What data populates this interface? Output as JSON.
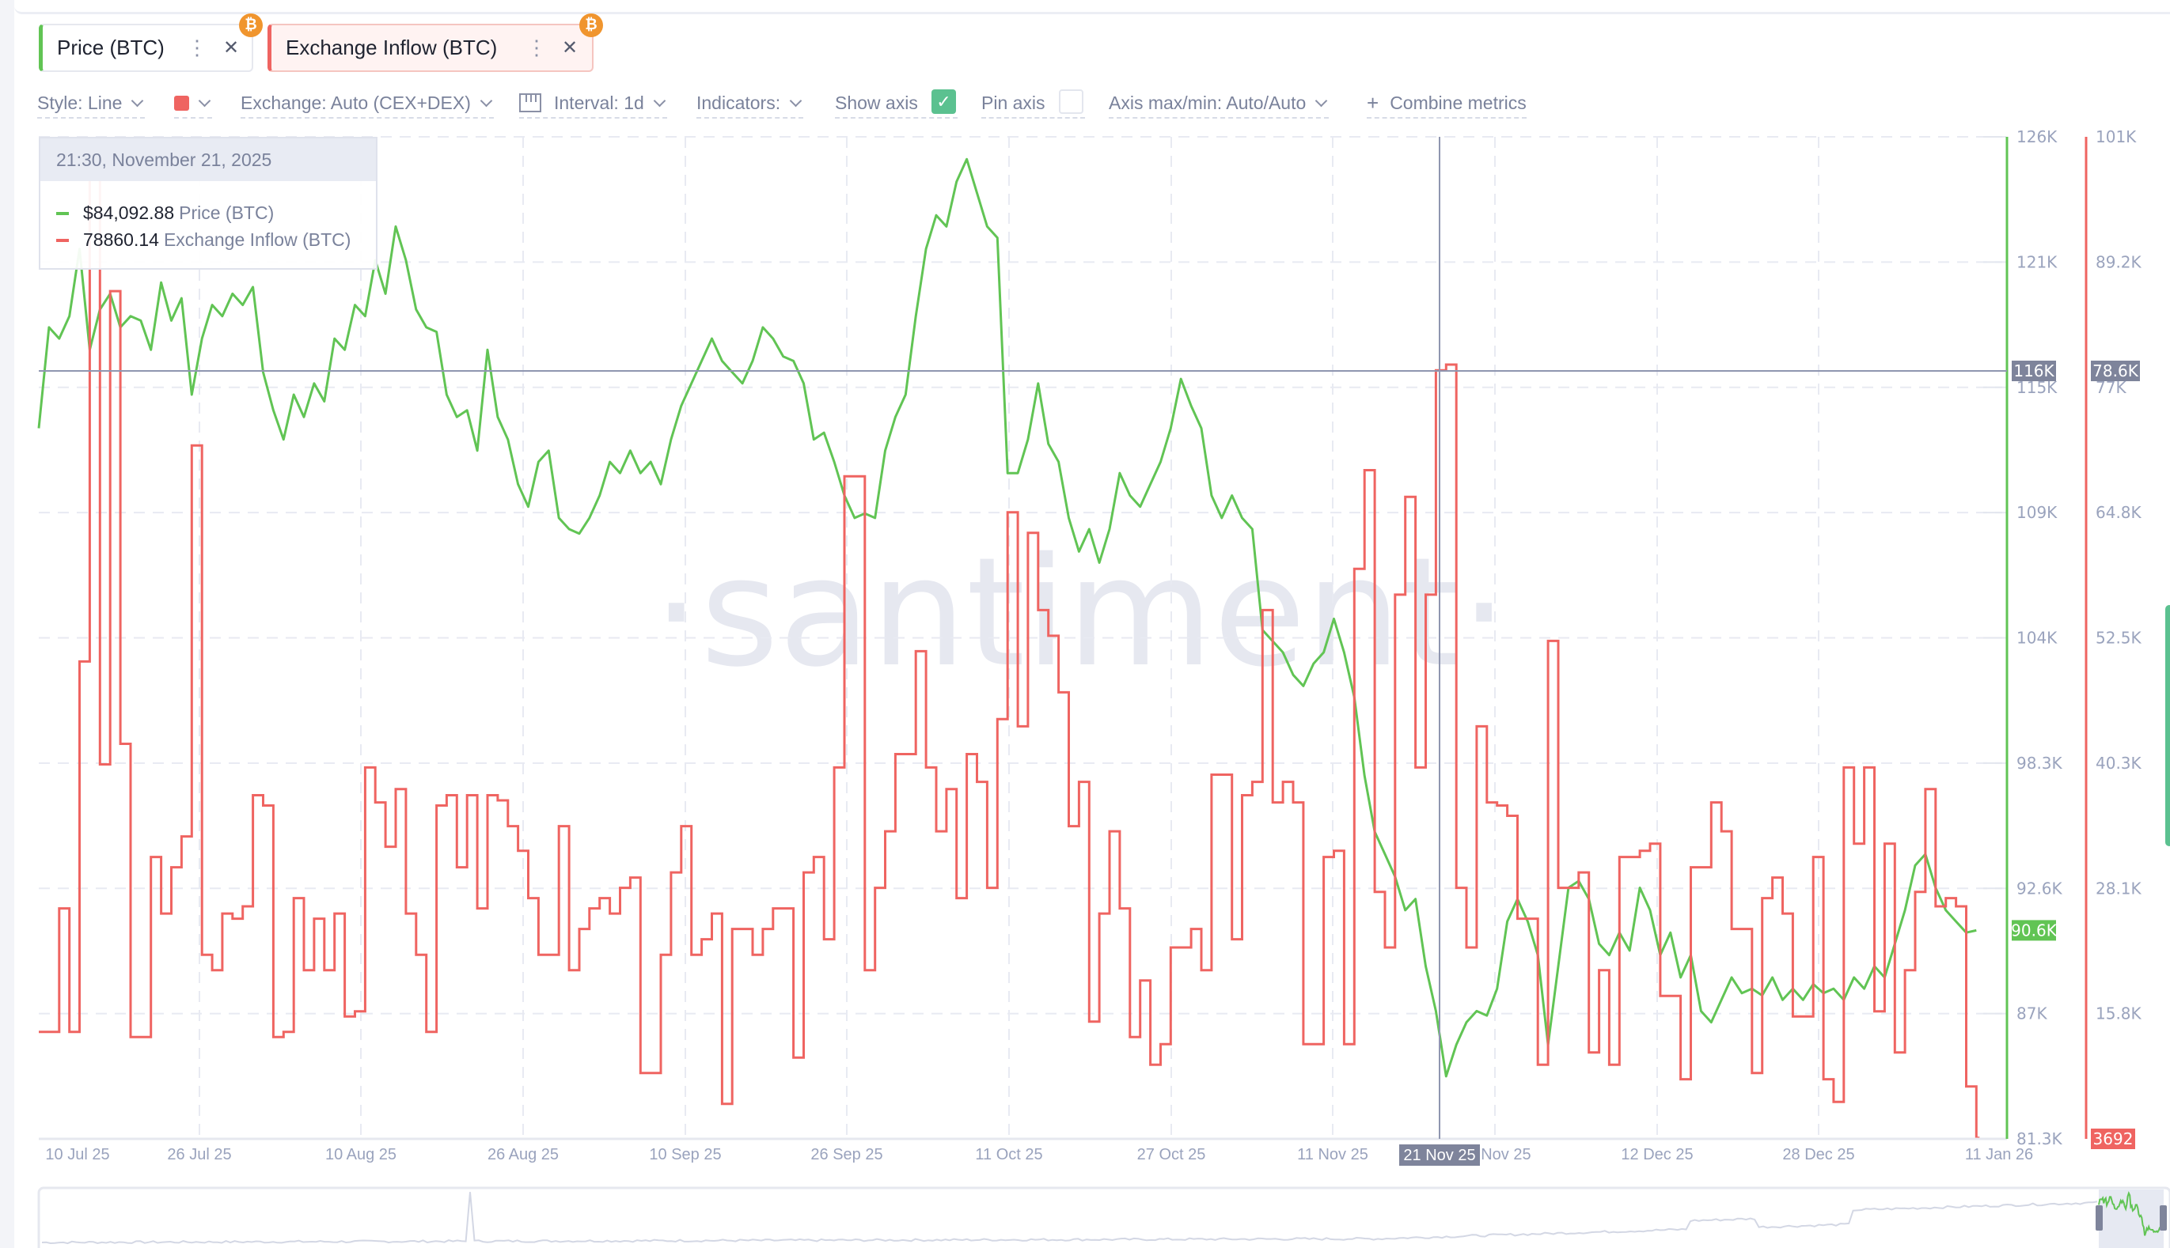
{
  "tabs": [
    {
      "label": "Price (BTC)",
      "color": "#61c454",
      "badge_icon": "bitcoin-icon",
      "menu_icon": "more-vertical-icon",
      "close_icon": "close-icon"
    },
    {
      "label": "Exchange Inflow (BTC)",
      "color": "#ef6461",
      "badge_icon": "bitcoin-icon",
      "menu_icon": "more-vertical-icon",
      "close_icon": "close-icon"
    }
  ],
  "toolbar": {
    "style": "Style: Line",
    "color_swatch": "#ef6461",
    "exchange": "Exchange: Auto (CEX+DEX)",
    "interval": "Interval: 1d",
    "indicators": "Indicators:",
    "show_axis": "Show axis",
    "show_axis_checked": true,
    "pin_axis": "Pin axis",
    "pin_axis_checked": false,
    "axis_maxmin": "Axis max/min: Auto/Auto",
    "combine": "Combine metrics"
  },
  "tooltip": {
    "datetime": "21:30, November 21, 2025",
    "rows": [
      {
        "value": "$84,092.88",
        "name": "Price (BTC)",
        "color": "#61c454"
      },
      {
        "value": "78860.14",
        "name": "Exchange Inflow (BTC)",
        "color": "#ef6461"
      }
    ]
  },
  "watermark": "·santiment·",
  "scroll_indicator_color": "#5bc190",
  "chart_data": {
    "type": "line",
    "xlim": [
      "2025-07-07",
      "2026-01-16"
    ],
    "grid": true,
    "x_ticks": [
      "10 Jul 25",
      "26 Jul 25",
      "10 Aug 25",
      "26 Aug 25",
      "10 Sep 25",
      "26 Sep 25",
      "11 Oct 25",
      "27 Oct 25",
      "11 Nov 25",
      "26 Nov 25",
      "12 Dec 25",
      "28 Dec 25",
      "11 Jan 26"
    ],
    "crosshair": {
      "x_label": "21 Nov 25",
      "price_label": "116K",
      "inflow_label": "78.6K"
    },
    "axes": {
      "price": {
        "ticks": [
          "126K",
          "121K",
          "115K",
          "109K",
          "104K",
          "98.3K",
          "92.6K",
          "87K",
          "81.3K"
        ],
        "ylim": [
          81.3,
          126
        ],
        "unit": "K",
        "color": "#61c454",
        "last_label": "90.6K",
        "last_value": 90.6
      },
      "inflow": {
        "ticks": [
          "101K",
          "89.2K",
          "77K",
          "64.8K",
          "52.5K",
          "40.3K",
          "28.1K",
          "15.8K"
        ],
        "ylim": [
          3.6,
          101
        ],
        "unit": "K",
        "color": "#ef6461",
        "last_label": "3692",
        "last_value": 3.692
      }
    },
    "x": [
      "2025-07-07",
      "2025-07-08",
      "2025-07-09",
      "2025-07-10",
      "2025-07-11",
      "2025-07-12",
      "2025-07-13",
      "2025-07-14",
      "2025-07-15",
      "2025-07-16",
      "2025-07-17",
      "2025-07-18",
      "2025-07-19",
      "2025-07-20",
      "2025-07-21",
      "2025-07-22",
      "2025-07-23",
      "2025-07-24",
      "2025-07-25",
      "2025-07-26",
      "2025-07-27",
      "2025-07-28",
      "2025-07-29",
      "2025-07-30",
      "2025-07-31",
      "2025-08-01",
      "2025-08-02",
      "2025-08-03",
      "2025-08-04",
      "2025-08-05",
      "2025-08-06",
      "2025-08-07",
      "2025-08-08",
      "2025-08-09",
      "2025-08-10",
      "2025-08-11",
      "2025-08-12",
      "2025-08-13",
      "2025-08-14",
      "2025-08-15",
      "2025-08-16",
      "2025-08-17",
      "2025-08-18",
      "2025-08-19",
      "2025-08-20",
      "2025-08-21",
      "2025-08-22",
      "2025-08-23",
      "2025-08-24",
      "2025-08-25",
      "2025-08-26",
      "2025-08-27",
      "2025-08-28",
      "2025-08-29",
      "2025-08-30",
      "2025-08-31",
      "2025-09-01",
      "2025-09-02",
      "2025-09-03",
      "2025-09-04",
      "2025-09-05",
      "2025-09-06",
      "2025-09-07",
      "2025-09-08",
      "2025-09-09",
      "2025-09-10",
      "2025-09-11",
      "2025-09-12",
      "2025-09-13",
      "2025-09-14",
      "2025-09-15",
      "2025-09-16",
      "2025-09-17",
      "2025-09-18",
      "2025-09-19",
      "2025-09-20",
      "2025-09-21",
      "2025-09-22",
      "2025-09-23",
      "2025-09-24",
      "2025-09-25",
      "2025-09-26",
      "2025-09-27",
      "2025-09-28",
      "2025-09-29",
      "2025-09-30",
      "2025-10-01",
      "2025-10-02",
      "2025-10-03",
      "2025-10-04",
      "2025-10-05",
      "2025-10-06",
      "2025-10-07",
      "2025-10-08",
      "2025-10-09",
      "2025-10-10",
      "2025-10-11",
      "2025-10-12",
      "2025-10-13",
      "2025-10-14",
      "2025-10-15",
      "2025-10-16",
      "2025-10-17",
      "2025-10-18",
      "2025-10-19",
      "2025-10-20",
      "2025-10-21",
      "2025-10-22",
      "2025-10-23",
      "2025-10-24",
      "2025-10-25",
      "2025-10-26",
      "2025-10-27",
      "2025-10-28",
      "2025-10-29",
      "2025-10-30",
      "2025-10-31",
      "2025-11-01",
      "2025-11-02",
      "2025-11-03",
      "2025-11-04",
      "2025-11-05",
      "2025-11-06",
      "2025-11-07",
      "2025-11-08",
      "2025-11-09",
      "2025-11-10",
      "2025-11-11",
      "2025-11-12",
      "2025-11-13",
      "2025-11-14",
      "2025-11-15",
      "2025-11-16",
      "2025-11-17",
      "2025-11-18",
      "2025-11-19",
      "2025-11-20",
      "2025-11-21",
      "2025-11-22",
      "2025-11-23",
      "2025-11-24",
      "2025-11-25",
      "2025-11-26",
      "2025-11-27",
      "2025-11-28",
      "2025-11-29",
      "2025-11-30",
      "2025-12-01",
      "2025-12-02",
      "2025-12-03",
      "2025-12-04",
      "2025-12-05",
      "2025-12-06",
      "2025-12-07",
      "2025-12-08",
      "2025-12-09",
      "2025-12-10",
      "2025-12-11",
      "2025-12-12",
      "2025-12-13",
      "2025-12-14",
      "2025-12-15",
      "2025-12-16",
      "2025-12-17",
      "2025-12-18",
      "2025-12-19",
      "2025-12-20",
      "2025-12-21",
      "2025-12-22",
      "2025-12-23",
      "2025-12-24",
      "2025-12-25",
      "2025-12-26",
      "2025-12-27",
      "2025-12-28",
      "2025-12-29",
      "2025-12-30",
      "2025-12-31",
      "2026-01-01",
      "2026-01-02",
      "2026-01-03",
      "2026-01-04",
      "2026-01-05",
      "2026-01-06",
      "2026-01-07",
      "2026-01-08",
      "2026-01-09",
      "2026-01-10",
      "2026-01-11",
      "2026-01-12",
      "2026-01-13"
    ],
    "series": [
      {
        "name": "Price (BTC)",
        "axis": "price",
        "color": "#61c454",
        "values": [
          113,
          117.5,
          117,
          118,
          121,
          116.5,
          118.3,
          119,
          117.5,
          118,
          117.8,
          116.5,
          119.5,
          117.8,
          118.8,
          114.5,
          117,
          118.5,
          118,
          119,
          118.5,
          119.3,
          115.5,
          113.8,
          112.5,
          114.5,
          113.5,
          115,
          114.2,
          117,
          116.5,
          118.5,
          118,
          120.5,
          119,
          122,
          120.5,
          118.3,
          117.5,
          117.3,
          114.5,
          113.5,
          113.8,
          112,
          116.5,
          113.5,
          112.5,
          110.5,
          109.5,
          111.5,
          112,
          109,
          108.5,
          108.3,
          109,
          110,
          111.5,
          111,
          112,
          111,
          111.5,
          110.5,
          112.5,
          114,
          115,
          116,
          117,
          116,
          115.5,
          115,
          116,
          117.5,
          117,
          116.2,
          116,
          115,
          112.5,
          112.8,
          111.5,
          110,
          109,
          109.2,
          109,
          112,
          113.5,
          114.5,
          118,
          121,
          122.5,
          122,
          124,
          125,
          123.5,
          122,
          121.5,
          111,
          111,
          112.5,
          115,
          112.3,
          111.5,
          109,
          107.5,
          108.5,
          107,
          108.5,
          111,
          110,
          109.5,
          110.5,
          111.5,
          113,
          115.2,
          114,
          113,
          110,
          109,
          110,
          109,
          108.5,
          104,
          103.5,
          103,
          102,
          101.5,
          102.5,
          103,
          104.5,
          103,
          101,
          97.5,
          95,
          94,
          93,
          91.5,
          92,
          89,
          87,
          84.09,
          85.5,
          86.5,
          87,
          86.8,
          88,
          91,
          92,
          91,
          89.5,
          85.5,
          89,
          92.5,
          92.8,
          92,
          90,
          89.5,
          90.5,
          89.7,
          92.5,
          91.5,
          89.5,
          90.5,
          88.5,
          89.5,
          87,
          86.5,
          87.5,
          88.5,
          87.8,
          88,
          87.7,
          88.5,
          87.5,
          88,
          87.5,
          88.2,
          87.8,
          88,
          87.5,
          88.5,
          88,
          89,
          88.5,
          90,
          91.5,
          93.5,
          94,
          92.5,
          91.5,
          91,
          90.5,
          90.6
        ]
      },
      {
        "name": "Exchange Inflow (BTC)",
        "axis": "inflow",
        "color": "#ef6461",
        "values": [
          14,
          14,
          26,
          14,
          50,
          100,
          40,
          86,
          42,
          13.5,
          13.5,
          31,
          25.5,
          30,
          33,
          71,
          21.5,
          20,
          25.5,
          25,
          26.2,
          37,
          36,
          13.5,
          14,
          27,
          20,
          25,
          20,
          25.5,
          15.5,
          16,
          39.7,
          36.3,
          32,
          37.6,
          25.5,
          21.5,
          14,
          36,
          37,
          30,
          37,
          26,
          37,
          36.5,
          34,
          31.6,
          27,
          21.5,
          21.5,
          34,
          20,
          24,
          26,
          27,
          25.5,
          28,
          29,
          10,
          10,
          21.5,
          29.5,
          34,
          21.5,
          23,
          25.5,
          7,
          24,
          24,
          21.5,
          24,
          26,
          26,
          11.5,
          29.5,
          31,
          23,
          39.7,
          68,
          68,
          20,
          28,
          33.5,
          41,
          41,
          51,
          39.7,
          33.5,
          37.6,
          27,
          41,
          38.3,
          28,
          44.4,
          64.5,
          43.7,
          62.5,
          55,
          52.5,
          47,
          34,
          38.3,
          15,
          25.5,
          33.5,
          26,
          13.5,
          19,
          10.8,
          12.8,
          22.2,
          22.2,
          24,
          20,
          39,
          39,
          23,
          37,
          38.3,
          55,
          36.3,
          38.3,
          36.3,
          12.8,
          12.8,
          31,
          31.6,
          12.8,
          59,
          68.6,
          27.6,
          22.2,
          56.5,
          66,
          39.7,
          56.5,
          78.3,
          78.86,
          28,
          22.2,
          43.7,
          36.3,
          36,
          35,
          25,
          25,
          10.8,
          52,
          28,
          28,
          29.5,
          12,
          20,
          10.8,
          31,
          31,
          31.6,
          32.3,
          17.5,
          17.5,
          9.4,
          30,
          30,
          36.3,
          33.5,
          24,
          24,
          10,
          27,
          29,
          25.5,
          15.5,
          15.5,
          31,
          9.4,
          7.2,
          39.7,
          32.3,
          39.7,
          16,
          32.3,
          12,
          20,
          27.6,
          37.6,
          26.2,
          27,
          26.2,
          8.7,
          3.692
        ]
      }
    ]
  }
}
